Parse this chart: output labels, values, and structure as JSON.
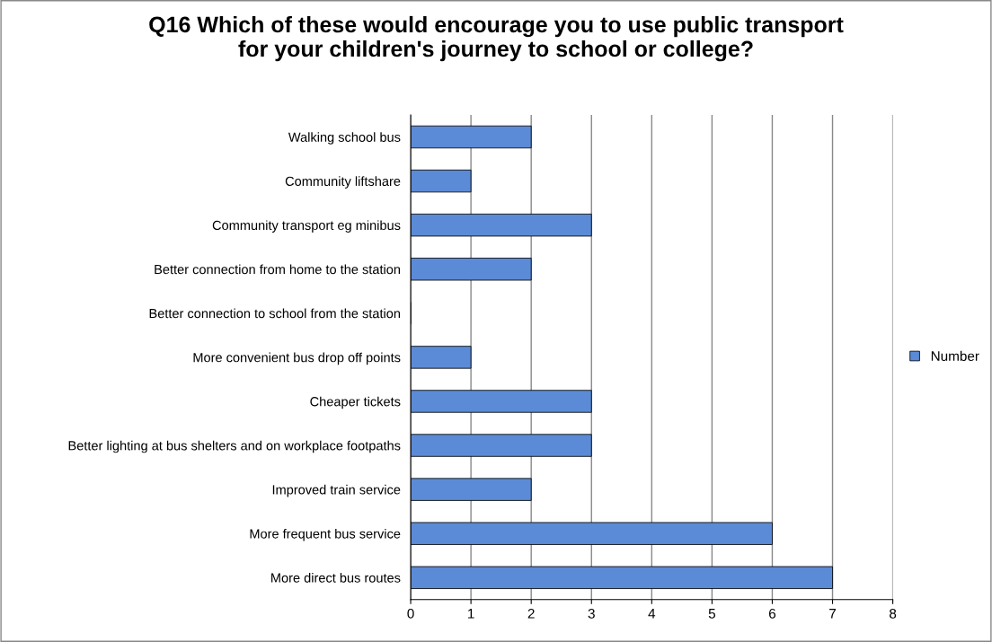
{
  "chart_data": {
    "type": "bar",
    "orientation": "horizontal",
    "title": "Q16 Which of these would encourage you to use public transport\nfor your children's journey to school or college?",
    "categories": [
      "Walking school bus",
      "Community liftshare",
      "Community transport eg minibus",
      "Better connection from home to the station",
      "Better connection to school from the station",
      "More convenient bus drop off points",
      "Cheaper tickets",
      "Better lighting at bus shelters and on workplace footpaths",
      "Improved train service",
      "More frequent bus service",
      "More direct bus routes"
    ],
    "series": [
      {
        "name": "Number",
        "color": "#5b8bd6",
        "values": [
          2,
          1,
          3,
          2,
          0,
          1,
          3,
          3,
          2,
          6,
          7
        ]
      }
    ],
    "xlim": [
      0,
      8
    ],
    "xticks": [
      0,
      1,
      2,
      3,
      4,
      5,
      6,
      7,
      8
    ],
    "grid": "x",
    "legend": "right"
  }
}
